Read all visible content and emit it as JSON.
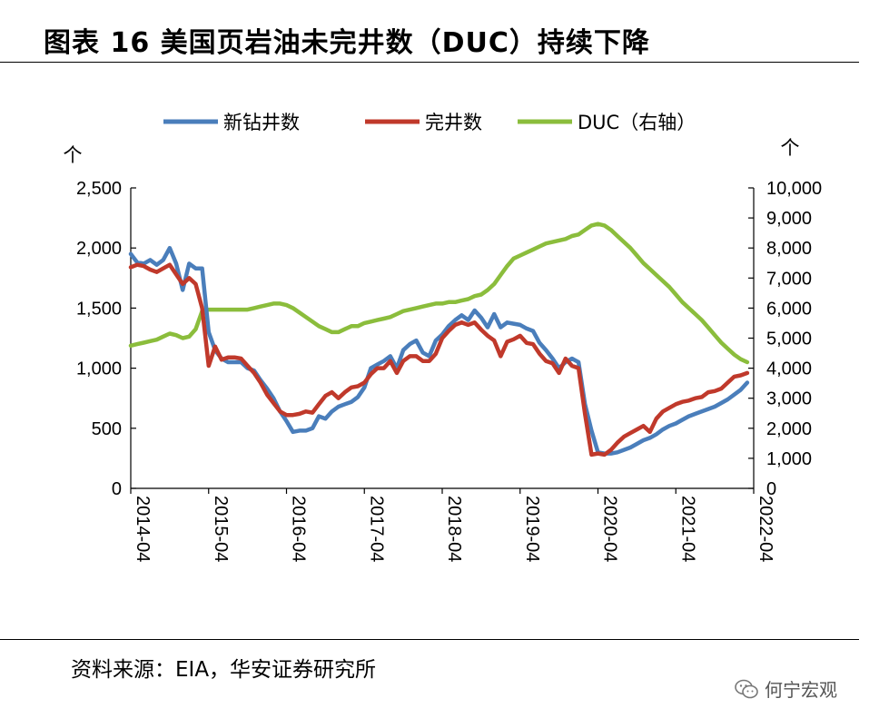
{
  "header": {
    "title": "图表 16  美国页岩油未完井数（DUC）持续下降"
  },
  "footer": {
    "source": "资料来源：EIA，华安证券研究所",
    "watermark": "何宁宏观"
  },
  "chart_data": {
    "type": "line",
    "title": "",
    "left_axis": {
      "unit": "个",
      "ylim": [
        0,
        2500
      ],
      "ticks": [
        0,
        500,
        1000,
        1500,
        2000,
        2500
      ],
      "tick_labels": [
        "0",
        "500",
        "1,000",
        "1,500",
        "2,000",
        "2,500"
      ]
    },
    "right_axis": {
      "unit": "个",
      "ylim": [
        0,
        10000
      ],
      "ticks": [
        0,
        1000,
        2000,
        3000,
        4000,
        5000,
        6000,
        7000,
        8000,
        9000,
        10000
      ],
      "tick_labels": [
        "0",
        "1,000",
        "2,000",
        "3,000",
        "4,000",
        "5,000",
        "6,000",
        "7,000",
        "8,000",
        "9,000",
        "10,000"
      ]
    },
    "x_axis": {
      "ticks": [
        "2014-04",
        "2015-04",
        "2016-04",
        "2017-04",
        "2018-04",
        "2019-04",
        "2020-04",
        "2021-04",
        "2022-04"
      ],
      "start": "2014-04",
      "end": "2022-04",
      "months": 96
    },
    "legend_position": "top",
    "series": [
      {
        "name": "新钻井数",
        "axis": "left",
        "color": "#4a7ebb",
        "values": [
          1950,
          1880,
          1870,
          1900,
          1860,
          1900,
          2000,
          1870,
          1650,
          1870,
          1830,
          1830,
          1300,
          1150,
          1080,
          1050,
          1050,
          1050,
          1000,
          980,
          900,
          830,
          750,
          640,
          560,
          470,
          480,
          480,
          500,
          600,
          580,
          640,
          680,
          700,
          720,
          760,
          840,
          1000,
          1030,
          1060,
          1100,
          1000,
          1150,
          1200,
          1230,
          1130,
          1100,
          1230,
          1280,
          1350,
          1400,
          1440,
          1400,
          1480,
          1420,
          1340,
          1450,
          1340,
          1380,
          1370,
          1360,
          1330,
          1310,
          1210,
          1150,
          1080,
          1000,
          1050,
          1080,
          1050,
          700,
          480,
          300,
          290,
          290,
          300,
          320,
          340,
          370,
          400,
          420,
          450,
          490,
          520,
          540,
          570,
          600,
          620,
          640,
          660,
          680,
          710,
          740,
          780,
          820,
          880
        ]
      },
      {
        "name": "完井数",
        "axis": "left",
        "color": "#c0392b",
        "values": [
          1840,
          1860,
          1850,
          1820,
          1800,
          1830,
          1860,
          1780,
          1700,
          1750,
          1700,
          1500,
          1020,
          1180,
          1070,
          1090,
          1090,
          1080,
          1020,
          960,
          880,
          780,
          710,
          640,
          610,
          610,
          620,
          640,
          630,
          700,
          770,
          800,
          750,
          800,
          840,
          850,
          880,
          950,
          1000,
          1000,
          1060,
          960,
          1060,
          1100,
          1100,
          1060,
          1060,
          1120,
          1250,
          1310,
          1360,
          1380,
          1360,
          1380,
          1320,
          1270,
          1230,
          1100,
          1220,
          1240,
          1270,
          1210,
          1200,
          1120,
          1060,
          1040,
          960,
          1080,
          1020,
          1000,
          620,
          280,
          290,
          280,
          320,
          380,
          430,
          460,
          490,
          520,
          470,
          580,
          640,
          670,
          700,
          720,
          730,
          750,
          760,
          800,
          810,
          830,
          880,
          930,
          940,
          960
        ]
      },
      {
        "name": "DUC（右轴）",
        "axis": "right",
        "color": "#8bbd3c",
        "values": [
          4750,
          4800,
          4850,
          4900,
          4950,
          5050,
          5150,
          5100,
          5000,
          5050,
          5300,
          5900,
          5950,
          5950,
          5950,
          5950,
          5950,
          5950,
          5950,
          6000,
          6050,
          6100,
          6150,
          6150,
          6100,
          6000,
          5850,
          5700,
          5550,
          5400,
          5300,
          5200,
          5200,
          5300,
          5400,
          5400,
          5500,
          5550,
          5600,
          5650,
          5700,
          5800,
          5900,
          5950,
          6000,
          6050,
          6100,
          6150,
          6150,
          6200,
          6200,
          6250,
          6300,
          6400,
          6450,
          6600,
          6800,
          7100,
          7400,
          7650,
          7750,
          7850,
          7950,
          8050,
          8150,
          8200,
          8250,
          8300,
          8400,
          8450,
          8600,
          8750,
          8800,
          8750,
          8600,
          8400,
          8200,
          8000,
          7750,
          7500,
          7300,
          7100,
          6900,
          6700,
          6450,
          6200,
          6000,
          5800,
          5600,
          5350,
          5100,
          4850,
          4650,
          4450,
          4300,
          4200
        ]
      }
    ]
  }
}
